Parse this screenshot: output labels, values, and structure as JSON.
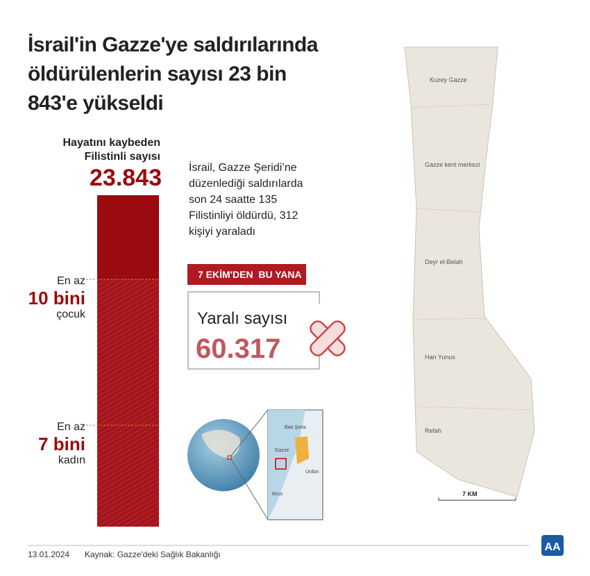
{
  "header": {
    "title_lines": [
      "İsrail'in Gazze'ye saldırılarında",
      "öldürülenlerin sayısı 23 bin",
      "843'e yükseldi"
    ]
  },
  "deaths": {
    "label_lines": [
      "Hayatını kaybeden",
      "Filistinli sayısı"
    ],
    "total": "23.843",
    "children": {
      "prefix": "En az",
      "amount": "10 bini",
      "group": "çocuk"
    },
    "women": {
      "prefix": "En az",
      "amount": "7 bini",
      "group": "kadın"
    }
  },
  "summary_lines": [
    "İsrail, Gazze Şeridi’ne",
    "düzenlediği saldırılarda",
    "son 24 saatte 135",
    "Filistinliyi öldürdü, 312",
    "kişiyi yaraladı"
  ],
  "badge": "7 EKİM'DEN  BU YANA",
  "injured": {
    "label": "Yaralı sayısı",
    "total": "60.317"
  },
  "map": {
    "districts": [
      "Kuzey Gazze",
      "Gazze kent merkezi",
      "Deyr el-Belah",
      "Han Yunus",
      "Refah"
    ],
    "scale": "7 KM"
  },
  "inset": {
    "labels": [
      "Batı Şeria",
      "Gazze",
      "Ürdün",
      "Mısır"
    ]
  },
  "footer": {
    "date": "13.01.2024",
    "source": "Kaynak: Gazze'deki Sağlık Bakanlığı",
    "logo": "AA"
  }
}
